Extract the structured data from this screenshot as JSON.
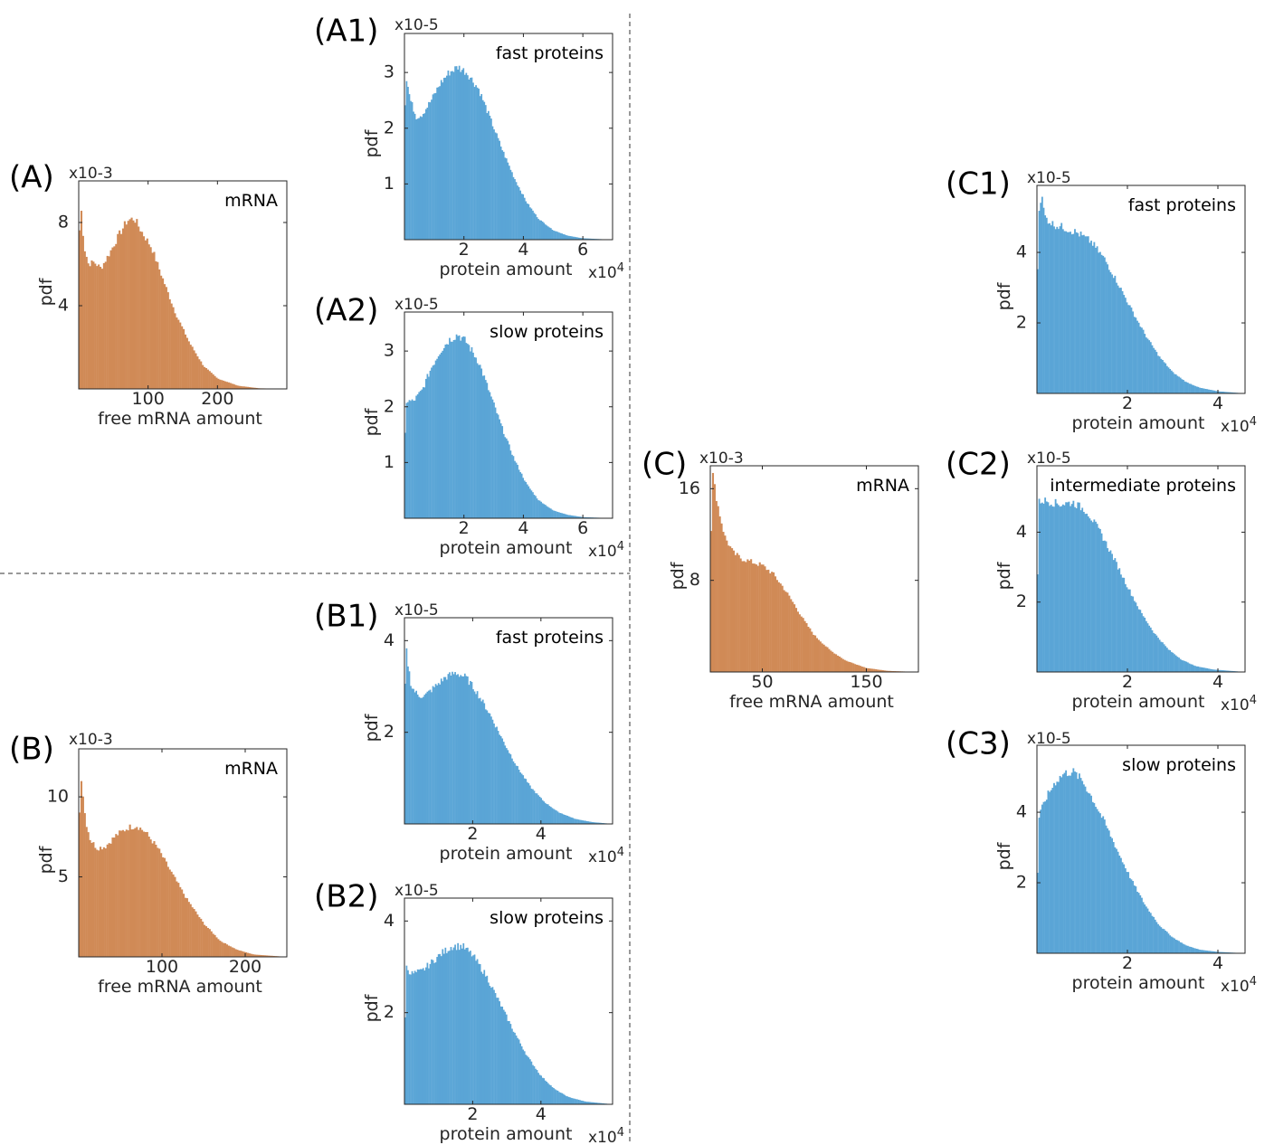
{
  "chart_data": [
    {
      "id": "A",
      "panel_label": "(A)",
      "type": "bar",
      "color": "#d08a56",
      "series_label": "mRNA",
      "xlabel": "free mRNA amount",
      "ylabel": "pdf",
      "y_exponent": "x10-3",
      "x_exponent": "",
      "xlim": [
        0,
        300
      ],
      "ylim": [
        0,
        10
      ],
      "xticks": [
        {
          "v": 100,
          "label": "100"
        },
        {
          "v": 200,
          "label": "200"
        }
      ],
      "yticks": [
        {
          "v": 4,
          "label": "4"
        },
        {
          "v": 8,
          "label": "8"
        }
      ],
      "profile": [
        [
          0,
          4.5
        ],
        [
          2,
          9.5
        ],
        [
          4,
          8.4
        ],
        [
          8,
          6.8
        ],
        [
          14,
          6.0
        ],
        [
          22,
          6.1
        ],
        [
          32,
          5.8
        ],
        [
          44,
          6.5
        ],
        [
          58,
          7.4
        ],
        [
          70,
          8.1
        ],
        [
          80,
          8.2
        ],
        [
          90,
          7.6
        ],
        [
          105,
          6.8
        ],
        [
          120,
          5.4
        ],
        [
          140,
          3.6
        ],
        [
          160,
          2.2
        ],
        [
          180,
          1.1
        ],
        [
          200,
          0.5
        ],
        [
          230,
          0.15
        ],
        [
          260,
          0.03
        ],
        [
          300,
          0
        ]
      ]
    },
    {
      "id": "B",
      "panel_label": "(B)",
      "type": "bar",
      "color": "#d08a56",
      "series_label": "mRNA",
      "xlabel": "free mRNA amount",
      "ylabel": "pdf",
      "y_exponent": "x10-3",
      "x_exponent": "",
      "xlim": [
        0,
        250
      ],
      "ylim": [
        0,
        13
      ],
      "xticks": [
        {
          "v": 100,
          "label": "100"
        },
        {
          "v": 200,
          "label": "200"
        }
      ],
      "yticks": [
        {
          "v": 5,
          "label": "5"
        },
        {
          "v": 10,
          "label": "10"
        }
      ],
      "profile": [
        [
          0,
          6.0
        ],
        [
          2,
          11.8
        ],
        [
          4,
          10.8
        ],
        [
          8,
          8.6
        ],
        [
          14,
          7.3
        ],
        [
          22,
          6.8
        ],
        [
          32,
          6.9
        ],
        [
          45,
          7.6
        ],
        [
          60,
          8.1
        ],
        [
          70,
          8.2
        ],
        [
          80,
          7.8
        ],
        [
          95,
          6.8
        ],
        [
          110,
          5.4
        ],
        [
          130,
          3.6
        ],
        [
          150,
          2.1
        ],
        [
          170,
          1.0
        ],
        [
          190,
          0.45
        ],
        [
          210,
          0.15
        ],
        [
          250,
          0
        ]
      ]
    },
    {
      "id": "C",
      "panel_label": "(C)",
      "type": "bar",
      "color": "#d08a56",
      "series_label": "mRNA",
      "xlabel": "free mRNA amount",
      "ylabel": "pdf",
      "y_exponent": "x10-3",
      "x_exponent": "",
      "xlim": [
        0,
        200
      ],
      "ylim": [
        0,
        18
      ],
      "xticks": [
        {
          "v": 50,
          "label": "50"
        },
        {
          "v": 150,
          "label": "150"
        }
      ],
      "yticks": [
        {
          "v": 8,
          "label": "8"
        },
        {
          "v": 16,
          "label": "16"
        }
      ],
      "profile": [
        [
          0,
          9.0
        ],
        [
          2,
          17.5
        ],
        [
          4,
          16.2
        ],
        [
          8,
          14.2
        ],
        [
          14,
          11.8
        ],
        [
          22,
          10.4
        ],
        [
          30,
          9.9
        ],
        [
          40,
          9.6
        ],
        [
          50,
          9.3
        ],
        [
          60,
          8.6
        ],
        [
          70,
          7.4
        ],
        [
          80,
          6.0
        ],
        [
          90,
          4.5
        ],
        [
          100,
          3.2
        ],
        [
          115,
          1.9
        ],
        [
          130,
          1.0
        ],
        [
          150,
          0.35
        ],
        [
          170,
          0.1
        ],
        [
          200,
          0
        ]
      ]
    },
    {
      "id": "A1",
      "panel_label": "(A1)",
      "type": "bar",
      "color": "#5aa5d6",
      "series_label": "fast proteins",
      "xlabel": "protein amount",
      "ylabel": "pdf",
      "y_exponent": "x10-5",
      "x_exponent": "x10",
      "xlim": [
        0,
        7
      ],
      "ylim": [
        0,
        3.7
      ],
      "xticks": [
        {
          "v": 2,
          "label": "2"
        },
        {
          "v": 4,
          "label": "4"
        },
        {
          "v": 6,
          "label": "6"
        }
      ],
      "yticks": [
        {
          "v": 1,
          "label": "1"
        },
        {
          "v": 2,
          "label": "2"
        },
        {
          "v": 3,
          "label": "3"
        }
      ],
      "profile": [
        [
          0,
          0.6
        ],
        [
          0.03,
          3.0
        ],
        [
          0.08,
          2.85
        ],
        [
          0.2,
          2.5
        ],
        [
          0.4,
          2.2
        ],
        [
          0.6,
          2.25
        ],
        [
          0.9,
          2.5
        ],
        [
          1.2,
          2.8
        ],
        [
          1.5,
          3.0
        ],
        [
          1.8,
          3.1
        ],
        [
          2.1,
          3.0
        ],
        [
          2.5,
          2.7
        ],
        [
          2.9,
          2.15
        ],
        [
          3.3,
          1.6
        ],
        [
          3.7,
          1.1
        ],
        [
          4.1,
          0.68
        ],
        [
          4.5,
          0.38
        ],
        [
          5.0,
          0.17
        ],
        [
          5.5,
          0.07
        ],
        [
          6.0,
          0.025
        ],
        [
          7.0,
          0
        ]
      ]
    },
    {
      "id": "A2",
      "panel_label": "(A2)",
      "type": "bar",
      "color": "#5aa5d6",
      "series_label": "slow proteins",
      "xlabel": "protein amount",
      "ylabel": "pdf",
      "y_exponent": "x10-5",
      "x_exponent": "x10",
      "xlim": [
        0,
        7
      ],
      "ylim": [
        0,
        3.7
      ],
      "xticks": [
        {
          "v": 2,
          "label": "2"
        },
        {
          "v": 4,
          "label": "4"
        },
        {
          "v": 6,
          "label": "6"
        }
      ],
      "yticks": [
        {
          "v": 1,
          "label": "1"
        },
        {
          "v": 2,
          "label": "2"
        },
        {
          "v": 3,
          "label": "3"
        }
      ],
      "profile": [
        [
          0,
          1.0
        ],
        [
          0.05,
          2.1
        ],
        [
          0.3,
          2.1
        ],
        [
          0.6,
          2.3
        ],
        [
          0.9,
          2.7
        ],
        [
          1.2,
          3.0
        ],
        [
          1.5,
          3.2
        ],
        [
          1.8,
          3.3
        ],
        [
          2.1,
          3.15
        ],
        [
          2.5,
          2.8
        ],
        [
          2.9,
          2.2
        ],
        [
          3.3,
          1.6
        ],
        [
          3.7,
          1.05
        ],
        [
          4.1,
          0.62
        ],
        [
          4.5,
          0.33
        ],
        [
          5.0,
          0.14
        ],
        [
          5.5,
          0.06
        ],
        [
          6.0,
          0.02
        ],
        [
          7.0,
          0
        ]
      ]
    },
    {
      "id": "B1",
      "panel_label": "(B1)",
      "type": "bar",
      "color": "#5aa5d6",
      "series_label": "fast proteins",
      "xlabel": "protein amount",
      "ylabel": "pdf",
      "y_exponent": "x10-5",
      "x_exponent": "x10",
      "xlim": [
        0,
        6.1
      ],
      "ylim": [
        0,
        4.5
      ],
      "xticks": [
        {
          "v": 2,
          "label": "2"
        },
        {
          "v": 4,
          "label": "4"
        }
      ],
      "yticks": [
        {
          "v": 2,
          "label": "2"
        },
        {
          "v": 4,
          "label": "4"
        }
      ],
      "profile": [
        [
          0,
          1.0
        ],
        [
          0.03,
          4.0
        ],
        [
          0.08,
          3.6
        ],
        [
          0.2,
          3.0
        ],
        [
          0.4,
          2.8
        ],
        [
          0.6,
          2.8
        ],
        [
          0.9,
          3.0
        ],
        [
          1.2,
          3.2
        ],
        [
          1.5,
          3.3
        ],
        [
          1.8,
          3.2
        ],
        [
          2.1,
          2.9
        ],
        [
          2.5,
          2.4
        ],
        [
          2.9,
          1.8
        ],
        [
          3.3,
          1.25
        ],
        [
          3.7,
          0.8
        ],
        [
          4.1,
          0.48
        ],
        [
          4.5,
          0.26
        ],
        [
          5.0,
          0.11
        ],
        [
          5.5,
          0.04
        ],
        [
          6.1,
          0
        ]
      ]
    },
    {
      "id": "B2",
      "panel_label": "(B2)",
      "type": "bar",
      "color": "#5aa5d6",
      "series_label": "slow proteins",
      "xlabel": "protein amount",
      "ylabel": "pdf",
      "y_exponent": "x10-5",
      "x_exponent": "x10",
      "xlim": [
        0,
        6.1
      ],
      "ylim": [
        0,
        4.5
      ],
      "xticks": [
        {
          "v": 2,
          "label": "2"
        },
        {
          "v": 4,
          "label": "4"
        }
      ],
      "yticks": [
        {
          "v": 2,
          "label": "2"
        },
        {
          "v": 4,
          "label": "4"
        }
      ],
      "profile": [
        [
          0,
          1.2
        ],
        [
          0.05,
          3.0
        ],
        [
          0.2,
          2.85
        ],
        [
          0.5,
          2.9
        ],
        [
          0.8,
          3.1
        ],
        [
          1.1,
          3.3
        ],
        [
          1.4,
          3.45
        ],
        [
          1.7,
          3.45
        ],
        [
          2.0,
          3.25
        ],
        [
          2.4,
          2.8
        ],
        [
          2.8,
          2.2
        ],
        [
          3.2,
          1.6
        ],
        [
          3.6,
          1.05
        ],
        [
          4.0,
          0.62
        ],
        [
          4.4,
          0.33
        ],
        [
          4.8,
          0.16
        ],
        [
          5.3,
          0.06
        ],
        [
          6.1,
          0
        ]
      ]
    },
    {
      "id": "C1",
      "panel_label": "(C1)",
      "type": "bar",
      "color": "#5aa5d6",
      "series_label": "fast proteins",
      "xlabel": "protein amount",
      "ylabel": "pdf",
      "y_exponent": "x10-5",
      "x_exponent": "x10",
      "xlim": [
        0,
        4.6
      ],
      "ylim": [
        0,
        5.9
      ],
      "xticks": [
        {
          "v": 2,
          "label": "2"
        },
        {
          "v": 4,
          "label": "4"
        }
      ],
      "yticks": [
        {
          "v": 2,
          "label": "2"
        },
        {
          "v": 4,
          "label": "4"
        }
      ],
      "profile": [
        [
          0,
          1.5
        ],
        [
          0.03,
          5.2
        ],
        [
          0.1,
          5.6
        ],
        [
          0.18,
          5.0
        ],
        [
          0.35,
          4.8
        ],
        [
          0.6,
          4.7
        ],
        [
          0.9,
          4.55
        ],
        [
          1.2,
          4.3
        ],
        [
          1.5,
          3.8
        ],
        [
          1.8,
          3.1
        ],
        [
          2.1,
          2.35
        ],
        [
          2.4,
          1.65
        ],
        [
          2.7,
          1.05
        ],
        [
          3.0,
          0.6
        ],
        [
          3.3,
          0.32
        ],
        [
          3.6,
          0.16
        ],
        [
          4.0,
          0.06
        ],
        [
          4.6,
          0
        ]
      ]
    },
    {
      "id": "C2",
      "panel_label": "(C2)",
      "type": "bar",
      "color": "#5aa5d6",
      "series_label": "intermediate proteins",
      "xlabel": "protein amount",
      "ylabel": "pdf",
      "y_exponent": "x10-5",
      "x_exponent": "x10",
      "xlim": [
        0,
        4.6
      ],
      "ylim": [
        0,
        5.9
      ],
      "xticks": [
        {
          "v": 2,
          "label": "2"
        },
        {
          "v": 4,
          "label": "4"
        }
      ],
      "yticks": [
        {
          "v": 2,
          "label": "2"
        },
        {
          "v": 4,
          "label": "4"
        }
      ],
      "profile": [
        [
          0,
          1.8
        ],
        [
          0.05,
          4.9
        ],
        [
          0.2,
          4.9
        ],
        [
          0.5,
          4.8
        ],
        [
          0.8,
          4.85
        ],
        [
          1.1,
          4.6
        ],
        [
          1.4,
          4.0
        ],
        [
          1.7,
          3.25
        ],
        [
          2.0,
          2.45
        ],
        [
          2.3,
          1.7
        ],
        [
          2.6,
          1.1
        ],
        [
          2.9,
          0.65
        ],
        [
          3.2,
          0.35
        ],
        [
          3.5,
          0.17
        ],
        [
          3.9,
          0.07
        ],
        [
          4.6,
          0
        ]
      ]
    },
    {
      "id": "C3",
      "panel_label": "(C3)",
      "type": "bar",
      "color": "#5aa5d6",
      "series_label": "slow proteins",
      "xlabel": "protein amount",
      "ylabel": "pdf",
      "y_exponent": "x10-5",
      "x_exponent": "x10",
      "xlim": [
        0,
        4.6
      ],
      "ylim": [
        0,
        5.9
      ],
      "xticks": [
        {
          "v": 2,
          "label": "2"
        },
        {
          "v": 4,
          "label": "4"
        }
      ],
      "yticks": [
        {
          "v": 2,
          "label": "2"
        },
        {
          "v": 4,
          "label": "4"
        }
      ],
      "profile": [
        [
          0,
          1.5
        ],
        [
          0.05,
          3.9
        ],
        [
          0.2,
          4.4
        ],
        [
          0.4,
          4.85
        ],
        [
          0.6,
          5.1
        ],
        [
          0.8,
          5.15
        ],
        [
          1.0,
          4.9
        ],
        [
          1.2,
          4.45
        ],
        [
          1.5,
          3.7
        ],
        [
          1.8,
          2.85
        ],
        [
          2.1,
          2.05
        ],
        [
          2.4,
          1.35
        ],
        [
          2.7,
          0.8
        ],
        [
          3.0,
          0.45
        ],
        [
          3.3,
          0.22
        ],
        [
          3.6,
          0.1
        ],
        [
          4.0,
          0.04
        ],
        [
          4.6,
          0
        ]
      ]
    }
  ]
}
